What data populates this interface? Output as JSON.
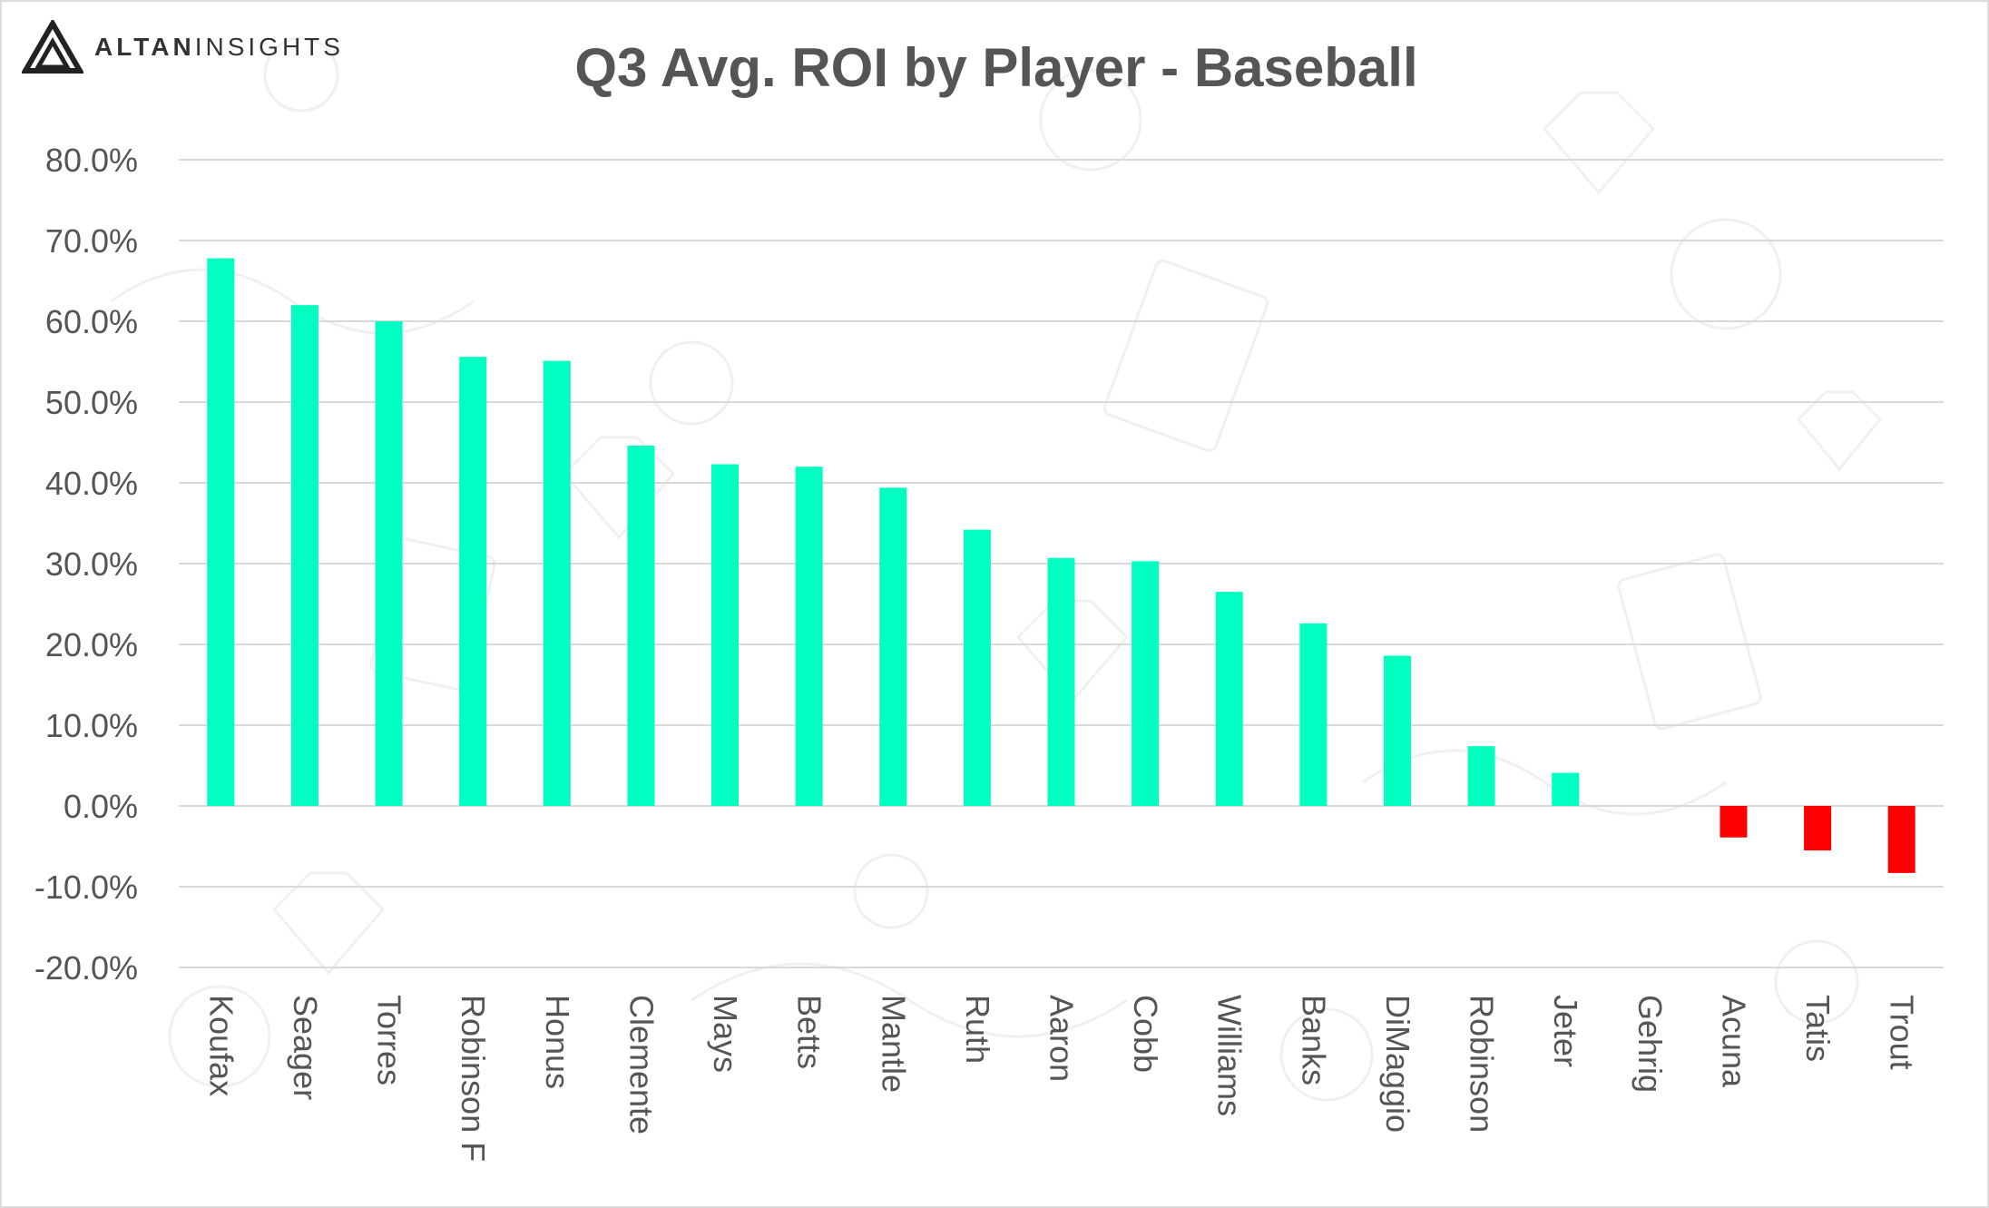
{
  "brand": {
    "name_bold": "ALTAN",
    "name_light": "INSIGHTS"
  },
  "colors": {
    "positive": "#00ffc0",
    "negative": "#ff0000",
    "grid": "#d9d9d9",
    "text": "#555555"
  },
  "chart_data": {
    "type": "bar",
    "title": "Q3 Avg. ROI by Player - Baseball",
    "xlabel": "",
    "ylabel": "",
    "ylim": [
      -20,
      80
    ],
    "yticks": [
      80,
      70,
      60,
      50,
      40,
      30,
      20,
      10,
      0,
      -10,
      -20
    ],
    "ytick_labels": [
      "80.0%",
      "70.0%",
      "60.0%",
      "50.0%",
      "40.0%",
      "30.0%",
      "20.0%",
      "10.0%",
      "0.0%",
      "-10.0%",
      "-20.0%"
    ],
    "grid": true,
    "legend": "none",
    "categories": [
      "Koufax",
      "Seager",
      "Torres",
      "Robinson F",
      "Honus",
      "Clemente",
      "Mays",
      "Betts",
      "Mantle",
      "Ruth",
      "Aaron",
      "Cobb",
      "Williams",
      "Banks",
      "DiMaggio",
      "Robinson",
      "Jeter",
      "Gehrig",
      "Acuna",
      "Tatis",
      "Trout"
    ],
    "values": [
      67.8,
      62.0,
      60.0,
      55.6,
      55.1,
      44.6,
      42.3,
      42.0,
      39.4,
      34.2,
      30.7,
      30.3,
      26.5,
      22.6,
      18.6,
      7.4,
      4.1,
      0.0,
      -3.9,
      -5.5,
      -8.3
    ]
  }
}
